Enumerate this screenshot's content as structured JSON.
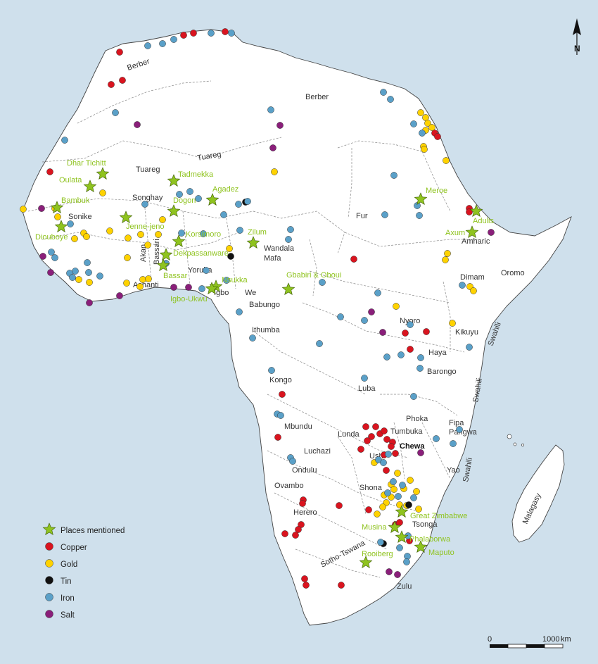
{
  "colors": {
    "sea": "#cfe0ec",
    "land": "#ffffff",
    "border": "#8a8a8a",
    "place": "#8fc31f",
    "copper": "#d9141f",
    "gold": "#ffd200",
    "tin": "#111111",
    "iron": "#5aa0c8",
    "salt": "#8a1f7a"
  },
  "north_label": "N",
  "scale": {
    "zero": "0",
    "end": "1000",
    "unit": "km"
  },
  "legend": [
    {
      "key": "place",
      "label": "Places mentioned",
      "icon": "star-icon"
    },
    {
      "key": "copper",
      "label": "Copper",
      "icon": "dot-icon"
    },
    {
      "key": "gold",
      "label": "Gold",
      "icon": "dot-icon"
    },
    {
      "key": "tin",
      "label": "Tin",
      "icon": "dot-icon"
    },
    {
      "key": "iron",
      "label": "Iron",
      "icon": "dot-icon"
    },
    {
      "key": "salt",
      "label": "Salt",
      "icon": "dot-icon"
    }
  ],
  "ethnic_labels": [
    "Berber",
    "Berber",
    "Tuareg",
    "Tuareg",
    "Songhay",
    "Sonike",
    "Bassari",
    "Akan",
    "Ashanti",
    "Yoruba",
    "Igbo",
    "We",
    "Wandala",
    "Mafa",
    "Babungo",
    "Fur",
    "Amharic",
    "Oromo",
    "Dimam",
    "Ithumba",
    "Kongo",
    "Nyoro",
    "Kikuyu",
    "Haya",
    "Barongo",
    "Luba",
    "Swahili",
    "Swahili",
    "Swahili",
    "Phoka",
    "Fipa",
    "Pangwa",
    "Tumbuka",
    "Lunda",
    "Mbundu",
    "Luchazi",
    "Ushi",
    "Chewa",
    "Ondulu",
    "Yao",
    "Ovambo",
    "Shona",
    "Herero",
    "Tsonga",
    "Sotho-Tswana",
    "Zulu",
    "Malagasy"
  ],
  "places": [
    "Dhar Tichitt",
    "Oulata",
    "Tadmekka",
    "Agadez",
    "Bambuk",
    "Dogon",
    "Jenne-jeno",
    "Diouboye",
    "Korsimoro",
    "Dekpassanware",
    "Zilum",
    "Bassar",
    "Nsukka",
    "Igbo-Ukwu",
    "Gbabiri & Oboui",
    "Meroe",
    "Adulis",
    "Axum",
    "Great Zimbabwe",
    "Musina",
    "Phalaborwa",
    "Maputo",
    "Rooiberg"
  ]
}
